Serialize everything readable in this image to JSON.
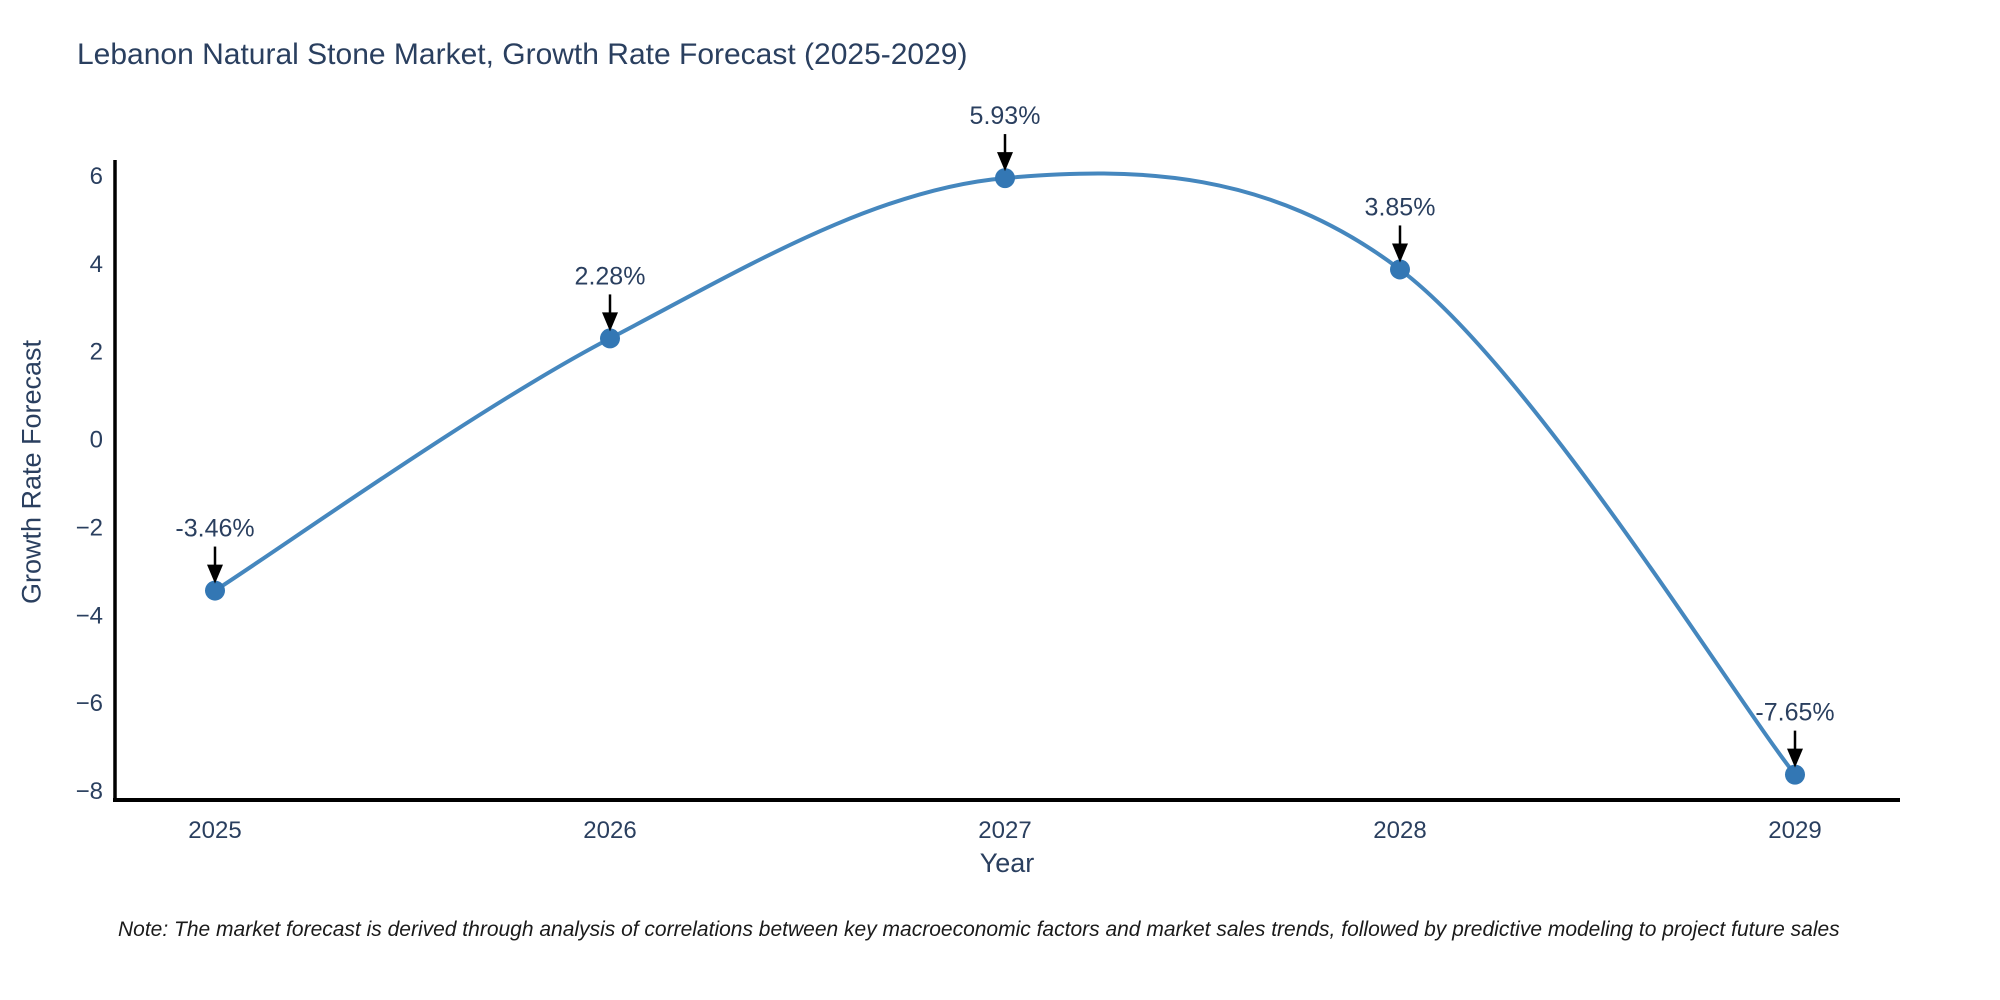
{
  "title": "Lebanon Natural Stone Market, Growth Rate Forecast (2025-2029)",
  "note": "Note: The market forecast is derived through analysis of correlations between key macroeconomic factors and market sales trends, followed by predictive modeling to project future sales",
  "chart_data": {
    "type": "line",
    "line_shape": "spline",
    "x": [
      "2025",
      "2026",
      "2027",
      "2028",
      "2029"
    ],
    "values": [
      -3.46,
      2.28,
      5.93,
      3.85,
      -7.65
    ],
    "point_labels": [
      "-3.46%",
      "2.28%",
      "5.93%",
      "3.85%",
      "-7.65%"
    ],
    "title": "Lebanon Natural Stone Market, Growth Rate Forecast (2025-2029)",
    "xlabel": "Year",
    "ylabel": "Growth Rate Forecast",
    "ylim": [
      -8,
      6
    ],
    "yticks": [
      6,
      4,
      2,
      0,
      -2,
      -4,
      -6,
      -8
    ],
    "ytick_labels": [
      "6",
      "4",
      "2",
      "0",
      "−2",
      "−4",
      "−6",
      "−8"
    ],
    "grid": false,
    "legend": "none",
    "colors": {
      "line": "#4587be",
      "marker": "#3377b4",
      "axis": "#000000",
      "text": "#2a3f5f",
      "annotation_arrow": "#000000",
      "background": "#ffffff"
    }
  }
}
